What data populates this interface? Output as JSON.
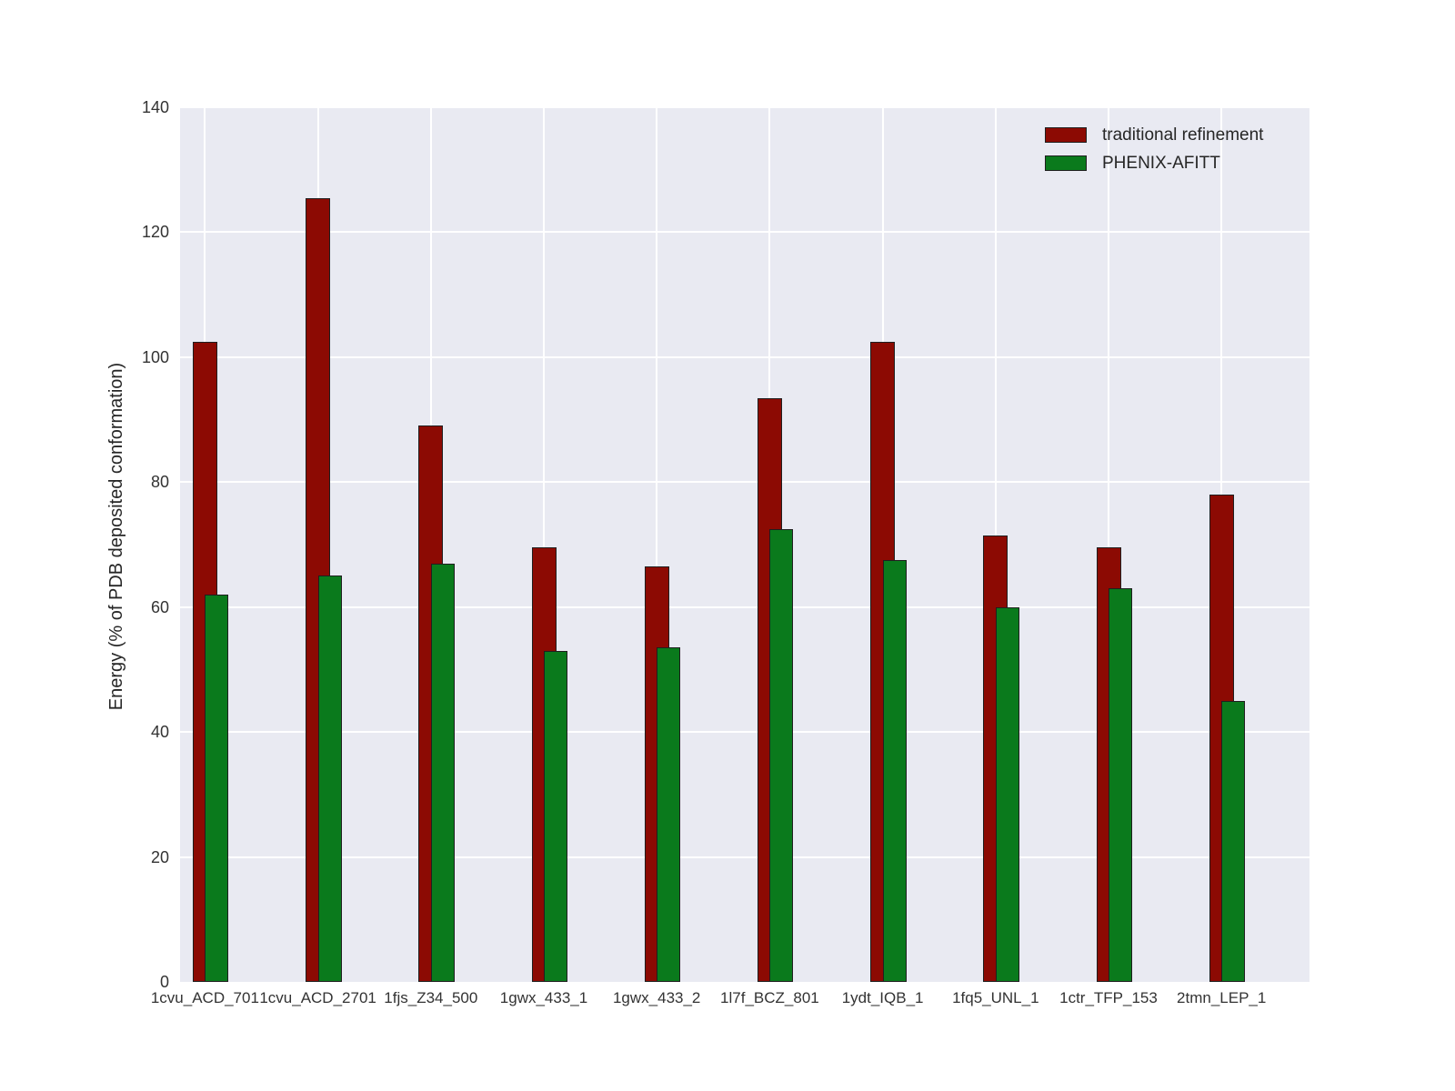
{
  "chart_data": {
    "type": "bar",
    "title": "",
    "xlabel": "",
    "ylabel": "Energy (% of PDB deposited conformation)",
    "ylim": [
      0,
      140
    ],
    "yticks": [
      0,
      20,
      40,
      60,
      80,
      100,
      120,
      140
    ],
    "grid": true,
    "legend_position": "upper right",
    "bar_style": "paired bars, second series overlaps first by half a bar width",
    "categories": [
      "1cvu_ACD_701",
      "1cvu_ACD_2701",
      "1fjs_Z34_500",
      "1gwx_433_1",
      "1gwx_433_2",
      "1l7f_BCZ_801",
      "1ydt_IQB_1",
      "1fq5_UNL_1",
      "1ctr_TFP_153",
      "2tmn_LEP_1"
    ],
    "series": [
      {
        "name": "traditional refinement",
        "color": "#8c0a03",
        "values": [
          102.5,
          125.5,
          89,
          69.5,
          66.5,
          93.5,
          102.5,
          71.5,
          69.5,
          78
        ]
      },
      {
        "name": "PHENIX-AFITT",
        "color": "#0a7a1c",
        "values": [
          62,
          65,
          67,
          53,
          53.5,
          72.5,
          67.5,
          60,
          63,
          45
        ]
      }
    ]
  },
  "colors": {
    "figure_bg": "#ffffff",
    "plot_bg": "#e9eaf2",
    "grid": "#ffffff",
    "bar_edge": "#1f1f1f",
    "tick_text": "#333333",
    "label_text": "#262626"
  }
}
